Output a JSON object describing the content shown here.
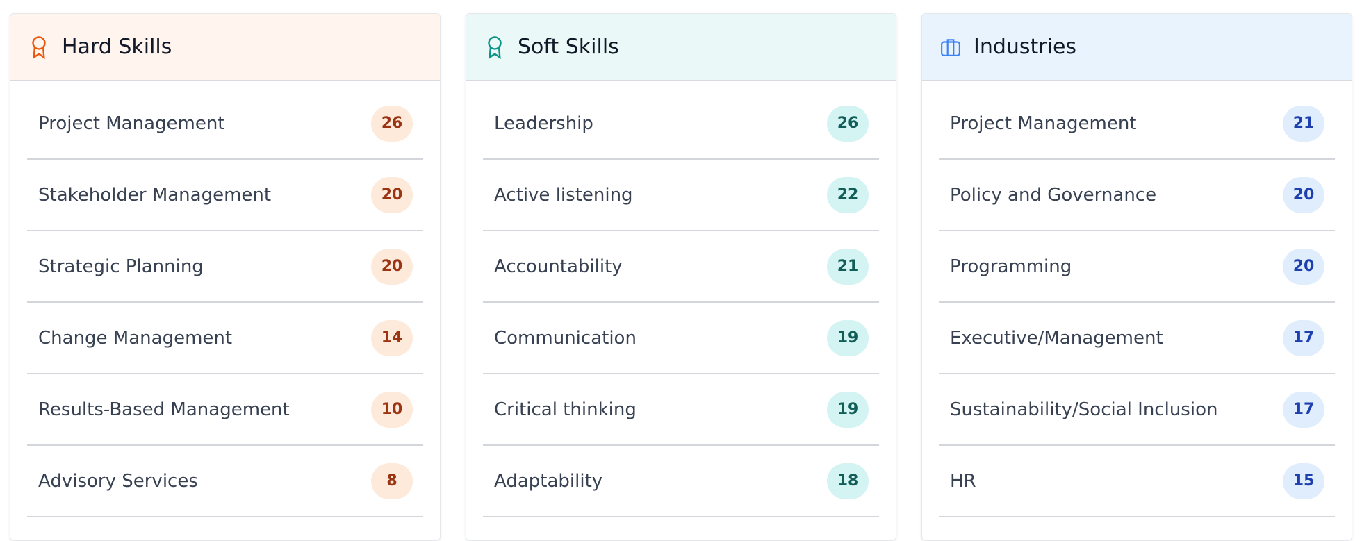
{
  "columns": [
    {
      "title": "Hard Skills",
      "items": [
        {
          "label": "Project Management",
          "count": "26"
        },
        {
          "label": "Stakeholder Management",
          "count": "20"
        },
        {
          "label": "Strategic Planning",
          "count": "20"
        },
        {
          "label": "Change Management",
          "count": "14"
        },
        {
          "label": "Results-Based Management",
          "count": "10"
        },
        {
          "label": "Advisory Services",
          "count": "8"
        }
      ]
    },
    {
      "title": "Soft Skills",
      "items": [
        {
          "label": "Leadership",
          "count": "26"
        },
        {
          "label": "Active listening",
          "count": "22"
        },
        {
          "label": "Accountability",
          "count": "21"
        },
        {
          "label": "Communication",
          "count": "19"
        },
        {
          "label": "Critical thinking",
          "count": "19"
        },
        {
          "label": "Adaptability",
          "count": "18"
        }
      ]
    },
    {
      "title": "Industries",
      "items": [
        {
          "label": "Project Management",
          "count": "21"
        },
        {
          "label": "Policy and Governance",
          "count": "20"
        },
        {
          "label": "Programming",
          "count": "20"
        },
        {
          "label": "Executive/Management",
          "count": "17"
        },
        {
          "label": "Sustainability/Social Inclusion",
          "count": "17"
        },
        {
          "label": "HR",
          "count": "15"
        }
      ]
    }
  ]
}
